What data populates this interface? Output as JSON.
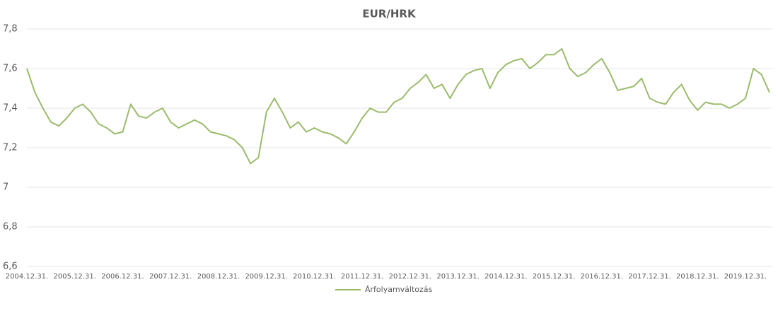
{
  "chart_data": {
    "type": "line",
    "title": "EUR/HRK",
    "categories": [
      "2004.12.31.",
      null,
      null,
      null,
      null,
      null,
      "2005.12.31.",
      null,
      null,
      null,
      null,
      null,
      "2006.12.31.",
      null,
      null,
      null,
      null,
      null,
      "2007.12.31.",
      null,
      null,
      null,
      null,
      null,
      "2008.12.31.",
      null,
      null,
      null,
      null,
      null,
      "2009.12.31.",
      null,
      null,
      null,
      null,
      null,
      "2010.12.31.",
      null,
      null,
      null,
      null,
      null,
      "2011.12.31.",
      null,
      null,
      null,
      null,
      null,
      "2012.12.31.",
      null,
      null,
      null,
      null,
      null,
      "2013.12.31.",
      null,
      null,
      null,
      null,
      null,
      "2014.12.31.",
      null,
      null,
      null,
      null,
      null,
      "2015.12.31.",
      null,
      null,
      null,
      null,
      null,
      "2016.12.31.",
      null,
      null,
      null,
      null,
      null,
      "2017.12.31.",
      null,
      null,
      null,
      null,
      null,
      "2018.12.31.",
      null,
      null,
      null,
      null,
      null,
      "2019.12.31.",
      null,
      null,
      null
    ],
    "series": [
      {
        "name": "Árfolyamváltozás",
        "color": "#9bbb6b",
        "values": [
          7.6,
          7.48,
          7.4,
          7.33,
          7.31,
          7.35,
          7.4,
          7.42,
          7.38,
          7.32,
          7.3,
          7.27,
          7.28,
          7.42,
          7.36,
          7.35,
          7.38,
          7.4,
          7.33,
          7.3,
          7.32,
          7.34,
          7.32,
          7.28,
          7.27,
          7.26,
          7.24,
          7.2,
          7.12,
          7.15,
          7.38,
          7.45,
          7.38,
          7.3,
          7.33,
          7.28,
          7.3,
          7.28,
          7.27,
          7.25,
          7.22,
          7.28,
          7.35,
          7.4,
          7.38,
          7.38,
          7.43,
          7.45,
          7.5,
          7.53,
          7.57,
          7.5,
          7.52,
          7.45,
          7.52,
          7.57,
          7.59,
          7.6,
          7.5,
          7.58,
          7.62,
          7.64,
          7.65,
          7.6,
          7.63,
          7.67,
          7.67,
          7.7,
          7.6,
          7.56,
          7.58,
          7.62,
          7.65,
          7.58,
          7.49,
          7.5,
          7.51,
          7.55,
          7.45,
          7.43,
          7.42,
          7.48,
          7.52,
          7.44,
          7.39,
          7.43,
          7.42,
          7.42,
          7.4,
          7.42,
          7.45,
          7.6,
          7.57,
          7.48
        ]
      }
    ],
    "ylim": [
      6.6,
      7.8
    ],
    "yticks": [
      {
        "value": 6.6,
        "label": "6,6"
      },
      {
        "value": 6.8,
        "label": "6,8"
      },
      7,
      {
        "value": 7.2,
        "label": "7,2"
      },
      {
        "value": 7.4,
        "label": "7,4"
      },
      {
        "value": 7.6,
        "label": "7,6"
      },
      {
        "value": 7.8,
        "label": "7,8"
      }
    ],
    "grid": true,
    "legend": "bottom"
  }
}
